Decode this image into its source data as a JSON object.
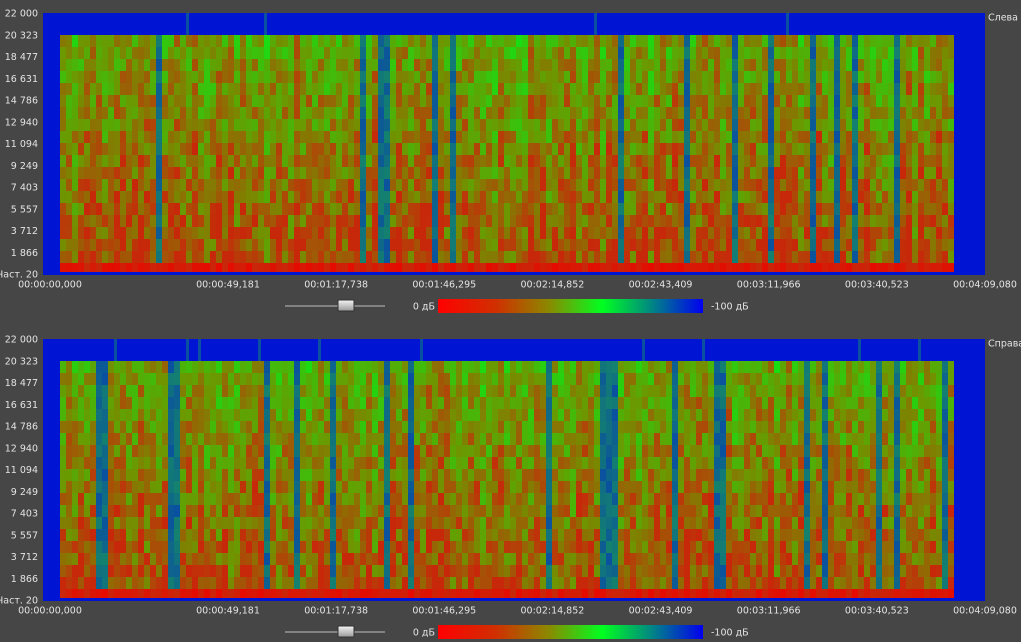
{
  "panels": [
    {
      "channel": "Слева",
      "freq_ticks": [
        "22 000",
        "20 323",
        "18 477",
        "16 631",
        "14 786",
        "12 940",
        "11 094",
        "9 249",
        "7 403",
        "5 557",
        "3 712",
        "1 866",
        "Част. 20"
      ],
      "time_ticks": [
        "00:00:00,000",
        "00:00:49,181",
        "00:01:17,738",
        "00:01:46,295",
        "00:02:14,852",
        "00:02:43,409",
        "00:03:11,966",
        "00:03:40,523",
        "00:04:09,080"
      ],
      "scale": {
        "max_label": "0 дБ",
        "min_label": "-100 дБ"
      }
    },
    {
      "channel": "Справа",
      "freq_ticks": [
        "22 000",
        "20 323",
        "18 477",
        "16 631",
        "14 786",
        "12 940",
        "11 094",
        "9 249",
        "7 403",
        "5 557",
        "3 712",
        "1 866",
        "Част. 20"
      ],
      "time_ticks": [
        "00:00:00,000",
        "00:00:49,181",
        "00:01:17,738",
        "00:01:46,295",
        "00:02:14,852",
        "00:02:43,409",
        "00:03:11,966",
        "00:03:40,523",
        "00:04:09,080"
      ],
      "scale": {
        "max_label": "0 дБ",
        "min_label": "-100 дБ"
      }
    }
  ]
}
